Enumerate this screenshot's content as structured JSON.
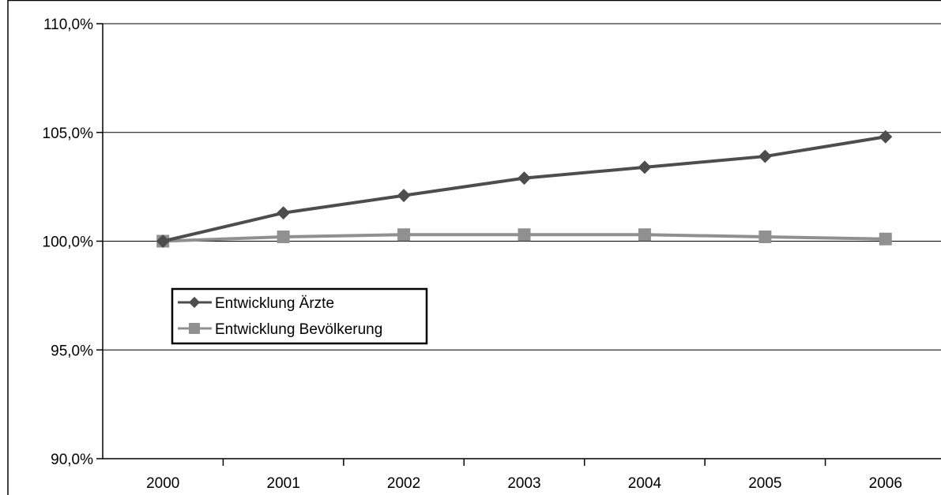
{
  "chart_data": {
    "type": "line",
    "title": "",
    "xlabel": "",
    "ylabel": "",
    "categories": [
      "2000",
      "2001",
      "2002",
      "2003",
      "2004",
      "2005",
      "2006"
    ],
    "ylim": [
      90,
      110
    ],
    "yticks": [
      90,
      95,
      100,
      105,
      110
    ],
    "ytick_labels": [
      "90,0%",
      "95,0%",
      "100,0%",
      "105,0%",
      "110,0%"
    ],
    "grid": true,
    "legend_placement": "left",
    "series": [
      {
        "name": "Entwicklung Ärzte",
        "values": [
          100.0,
          101.3,
          102.1,
          102.9,
          103.4,
          103.9,
          104.8
        ],
        "color": "#4d4d4d",
        "marker": "diamond"
      },
      {
        "name": "Entwicklung Bevölkerung",
        "values": [
          100.0,
          100.2,
          100.3,
          100.3,
          100.3,
          100.2,
          100.1
        ],
        "color": "#909090",
        "marker": "square"
      }
    ]
  }
}
